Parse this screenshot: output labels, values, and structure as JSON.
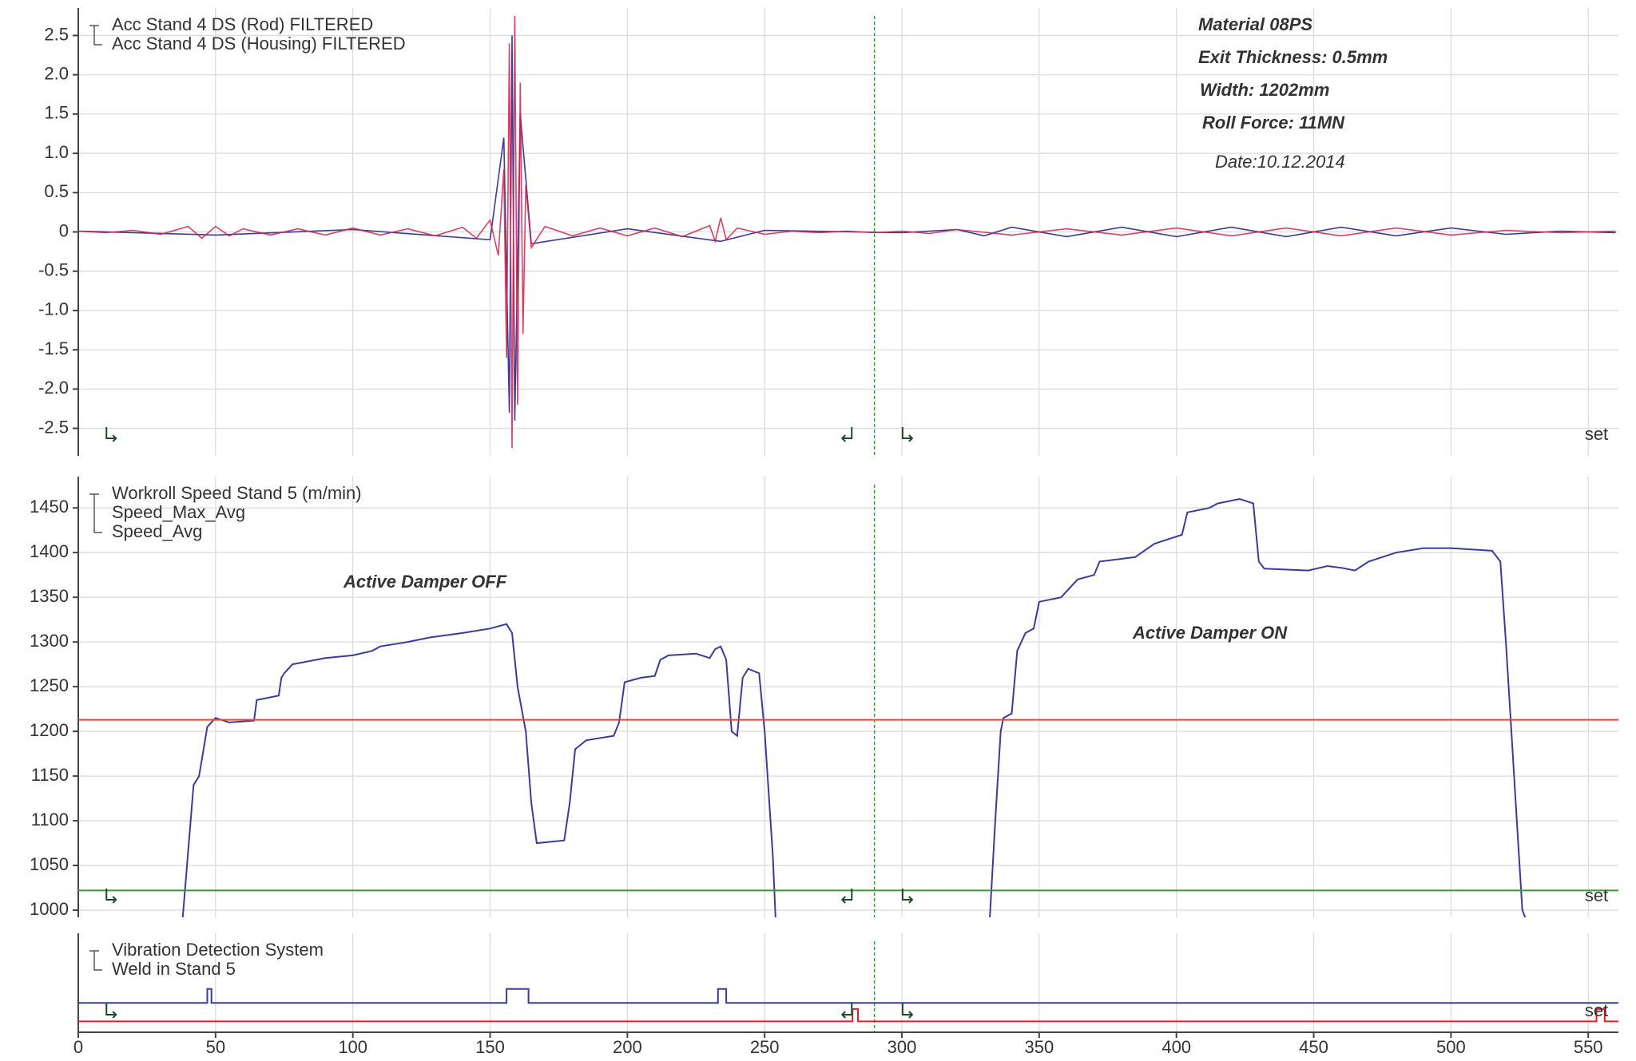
{
  "chart_data": [
    {
      "type": "line",
      "xlim": [
        0,
        561
      ],
      "ylim": [
        -2.85,
        2.85
      ],
      "yticks": [
        2.5,
        {
          "value": 2,
          "label": "2.0"
        },
        1.5,
        {
          "value": 1,
          "label": "1.0"
        },
        0.5,
        0,
        -0.5,
        {
          "value": -1,
          "label": "-1.0"
        },
        -1.5,
        {
          "value": -2,
          "label": "-2.0"
        },
        -2.5
      ],
      "grid": true,
      "marker_label": "set",
      "annotations": [
        "Material 08PS",
        "Exit Thickness: 0.5mm",
        "Width: 1202mm",
        "Roll Force: 11MN",
        "Date:10.12.2014"
      ],
      "series": [
        {
          "name": "Acc Stand 4 DS (Rod)  FILTERED",
          "color": "#3b3b9a",
          "x": [
            0,
            50,
            100,
            150,
            155,
            157,
            158,
            159,
            161,
            165,
            200,
            234,
            250,
            300,
            320,
            330,
            340,
            360,
            380,
            400,
            420,
            440,
            460,
            480,
            500,
            520,
            540,
            560
          ],
          "values": [
            0.01,
            -0.04,
            0.03,
            -0.1,
            1.2,
            -2.3,
            2.5,
            -2.4,
            1.5,
            -0.15,
            0.04,
            -0.12,
            0.02,
            -0.01,
            0.03,
            -0.05,
            0.06,
            -0.06,
            0.06,
            -0.06,
            0.06,
            -0.06,
            0.06,
            -0.05,
            0.05,
            -0.03,
            0.01,
            -0.01
          ]
        },
        {
          "name": "Acc Stand 4 DS (Housing)  FILTERED",
          "color": "#d4204c",
          "x": [
            0,
            10,
            20,
            30,
            40,
            45,
            50,
            55,
            60,
            70,
            80,
            90,
            100,
            110,
            120,
            130,
            140,
            145,
            150,
            153,
            155,
            156,
            157,
            158,
            159,
            160,
            161,
            162,
            163,
            165,
            170,
            180,
            190,
            200,
            210,
            220,
            230,
            232,
            234,
            236,
            240,
            250,
            260,
            270,
            280,
            290,
            300,
            310,
            320,
            340,
            360,
            380,
            400,
            420,
            440,
            460,
            480,
            500,
            520,
            540,
            560
          ],
          "values": [
            0.01,
            -0.01,
            0.02,
            -0.03,
            0.07,
            -0.08,
            0.07,
            -0.05,
            0.04,
            -0.04,
            0.04,
            -0.04,
            0.05,
            -0.04,
            0.04,
            -0.05,
            0.06,
            -0.08,
            0.15,
            -0.3,
            0.8,
            -1.6,
            2.4,
            -2.75,
            2.75,
            -2.2,
            1.9,
            -1.3,
            0.6,
            -0.2,
            0.07,
            -0.05,
            0.05,
            -0.05,
            0.05,
            -0.06,
            0.08,
            -0.12,
            0.18,
            -0.1,
            0.05,
            -0.03,
            0.01,
            -0.01,
            0.01,
            -0.01,
            0.01,
            -0.02,
            0.03,
            -0.04,
            0.04,
            -0.04,
            0.05,
            -0.05,
            0.05,
            -0.05,
            0.05,
            -0.04,
            0.02,
            -0.01,
            0.01
          ]
        }
      ]
    },
    {
      "type": "line",
      "xlim": [
        0,
        561
      ],
      "ylim": [
        992,
        1485
      ],
      "yticks": [
        1000,
        1050,
        1100,
        1150,
        1200,
        1250,
        1300,
        1350,
        1400,
        1450
      ],
      "grid": true,
      "marker_label": "set",
      "annotations": [
        "Active Damper OFF",
        "Active Damper ON"
      ],
      "series": [
        {
          "name": "Workroll Speed Stand 5 (m/min)",
          "color": "#3b3b9a",
          "x": [
            38,
            42,
            44,
            47,
            50,
            55,
            64,
            65,
            73,
            74,
            75,
            78,
            90,
            100,
            107,
            110,
            120,
            128,
            140,
            150,
            156,
            158,
            160,
            163,
            165,
            167,
            177,
            179,
            181,
            185,
            195,
            197,
            199,
            205,
            210,
            212,
            215,
            225,
            230,
            232,
            234,
            236,
            238,
            240,
            242,
            244,
            248,
            250,
            253,
            254,
            290,
            332,
            334,
            336,
            337,
            340,
            342,
            345,
            348,
            350,
            358,
            364,
            370,
            372,
            385,
            392,
            402,
            404,
            412,
            415,
            423,
            425,
            428,
            430,
            432,
            448,
            455,
            460,
            465,
            470,
            480,
            490,
            500,
            515,
            518,
            520,
            522,
            524,
            526,
            527
          ],
          "values": [
            990,
            1140,
            1150,
            1205,
            1215,
            1210,
            1212,
            1235,
            1240,
            1260,
            1265,
            1275,
            1282,
            1285,
            1290,
            1295,
            1300,
            1305,
            1310,
            1315,
            1320,
            1310,
            1250,
            1200,
            1120,
            1075,
            1078,
            1120,
            1180,
            1190,
            1195,
            1210,
            1255,
            1260,
            1262,
            1280,
            1285,
            1287,
            1282,
            1292,
            1295,
            1280,
            1200,
            1195,
            1260,
            1270,
            1265,
            1200,
            1060,
            990,
            null,
            990,
            1100,
            1200,
            1215,
            1220,
            1290,
            1310,
            1315,
            1345,
            1350,
            1370,
            1375,
            1390,
            1395,
            1410,
            1420,
            1445,
            1450,
            1455,
            1460,
            1458,
            1455,
            1390,
            1382,
            1380,
            1385,
            1383,
            1380,
            1390,
            1400,
            1405,
            1405,
            1402,
            1390,
            1300,
            1200,
            1100,
            1000,
            992
          ]
        },
        {
          "name": "Speed_Max_Avg",
          "color": "#e8453c",
          "x": [
            0,
            561
          ],
          "values": [
            1213,
            1213
          ]
        },
        {
          "name": "Speed_Avg",
          "color": "#3a9a3a",
          "x": [
            0,
            561
          ],
          "values": [
            1022,
            1022
          ]
        }
      ]
    },
    {
      "type": "line",
      "xlim": [
        0,
        561
      ],
      "ylim": [
        -0.7,
        5.7
      ],
      "xticks": [
        0,
        50,
        100,
        150,
        200,
        250,
        300,
        350,
        400,
        450,
        500,
        550
      ],
      "grid": true,
      "marker_label": "set",
      "series": [
        {
          "name": "Vibration Detection System",
          "color": "#3b3b9a",
          "x": [
            0,
            47,
            47,
            48.5,
            48.5,
            156,
            156,
            164,
            164,
            233,
            233,
            236,
            236,
            561
          ],
          "values": [
            1.2,
            1.2,
            2.1,
            2.1,
            1.2,
            1.2,
            2.1,
            2.1,
            1.2,
            1.2,
            2.1,
            2.1,
            1.2,
            1.2
          ]
        },
        {
          "name": "Weld in Stand 5",
          "color": "#e02020",
          "x": [
            0,
            282,
            282,
            284,
            284,
            553,
            553,
            556,
            556,
            561
          ],
          "values": [
            0,
            0,
            0.8,
            0.8,
            0,
            0,
            0.8,
            0.8,
            0,
            0
          ]
        }
      ]
    }
  ]
}
